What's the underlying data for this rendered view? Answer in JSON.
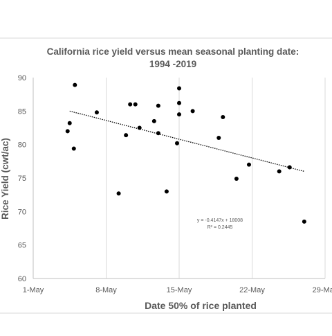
{
  "chart_data": {
    "type": "scatter",
    "title_lines": [
      "California rice yield versus mean seasonal planting date:",
      "1994 -2019"
    ],
    "xlabel": "Date 50% of rice planted",
    "ylabel": "Rice Yield (cwt/ac)",
    "x_ticks": [
      "1-May",
      "8-May",
      "15-May",
      "22-May",
      "29-May"
    ],
    "x_tick_days": [
      1,
      8,
      15,
      22,
      29
    ],
    "xlim_days": [
      1,
      29
    ],
    "ylim": [
      60,
      90
    ],
    "y_ticks": [
      60,
      65,
      70,
      75,
      80,
      85,
      90
    ],
    "grid": "vertical",
    "trendline": {
      "equation": "y = -0.4147x + 18008",
      "r_squared": "R² = 0.2445",
      "x_start": 4.5,
      "x_end": 27.0,
      "y_start": 85.0,
      "y_end": 76.0
    },
    "points": [
      {
        "x": 4.3,
        "y": 82.0
      },
      {
        "x": 4.5,
        "y": 83.2
      },
      {
        "x": 4.9,
        "y": 79.4
      },
      {
        "x": 5.0,
        "y": 88.9
      },
      {
        "x": 7.1,
        "y": 84.8
      },
      {
        "x": 9.2,
        "y": 72.7
      },
      {
        "x": 9.9,
        "y": 81.4
      },
      {
        "x": 10.3,
        "y": 86.0
      },
      {
        "x": 10.8,
        "y": 86.0
      },
      {
        "x": 11.2,
        "y": 82.5
      },
      {
        "x": 12.6,
        "y": 83.5
      },
      {
        "x": 13.0,
        "y": 85.8
      },
      {
        "x": 13.0,
        "y": 81.7
      },
      {
        "x": 13.8,
        "y": 73.0
      },
      {
        "x": 14.8,
        "y": 80.2
      },
      {
        "x": 15.0,
        "y": 88.4
      },
      {
        "x": 15.0,
        "y": 86.2
      },
      {
        "x": 15.0,
        "y": 84.5
      },
      {
        "x": 16.3,
        "y": 85.0
      },
      {
        "x": 18.8,
        "y": 81.0
      },
      {
        "x": 19.2,
        "y": 84.1
      },
      {
        "x": 20.5,
        "y": 74.9
      },
      {
        "x": 21.7,
        "y": 77.0
      },
      {
        "x": 24.6,
        "y": 76.0
      },
      {
        "x": 25.6,
        "y": 76.6
      },
      {
        "x": 27.0,
        "y": 68.5
      }
    ]
  }
}
